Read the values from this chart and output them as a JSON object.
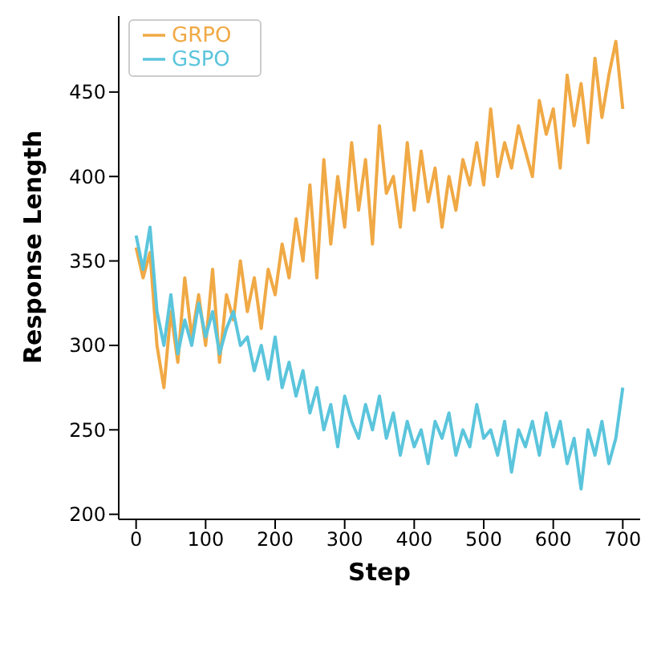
{
  "chart_data": {
    "type": "line",
    "xlabel": "Step",
    "ylabel": "Response Length",
    "x": [
      0,
      10,
      20,
      30,
      40,
      50,
      60,
      70,
      80,
      90,
      100,
      110,
      120,
      130,
      140,
      150,
      160,
      170,
      180,
      190,
      200,
      210,
      220,
      230,
      240,
      250,
      260,
      270,
      280,
      290,
      300,
      310,
      320,
      330,
      340,
      350,
      360,
      370,
      380,
      390,
      400,
      410,
      420,
      430,
      440,
      450,
      460,
      470,
      480,
      490,
      500,
      510,
      520,
      530,
      540,
      550,
      560,
      570,
      580,
      590,
      600,
      610,
      620,
      630,
      640,
      650,
      660,
      670,
      680,
      690,
      700
    ],
    "series": [
      {
        "name": "GRPO",
        "color": "#f0a945",
        "values": [
          358,
          340,
          355,
          300,
          275,
          320,
          290,
          340,
          305,
          330,
          300,
          345,
          290,
          330,
          315,
          350,
          320,
          340,
          310,
          345,
          330,
          360,
          340,
          375,
          350,
          395,
          340,
          410,
          360,
          400,
          370,
          420,
          380,
          410,
          360,
          430,
          390,
          400,
          370,
          420,
          380,
          415,
          385,
          405,
          370,
          400,
          380,
          410,
          395,
          420,
          395,
          440,
          400,
          420,
          405,
          430,
          415,
          400,
          445,
          425,
          440,
          405,
          460,
          430,
          455,
          420,
          470,
          435,
          460,
          480,
          440
        ]
      },
      {
        "name": "GSPO",
        "color": "#5bc5dc",
        "values": [
          365,
          345,
          370,
          320,
          300,
          330,
          295,
          315,
          300,
          325,
          305,
          320,
          295,
          310,
          320,
          300,
          305,
          285,
          300,
          280,
          305,
          275,
          290,
          270,
          285,
          260,
          275,
          250,
          265,
          240,
          270,
          255,
          245,
          265,
          250,
          270,
          245,
          260,
          235,
          255,
          240,
          250,
          230,
          255,
          245,
          260,
          235,
          250,
          240,
          265,
          245,
          250,
          235,
          255,
          225,
          250,
          240,
          255,
          235,
          260,
          240,
          255,
          230,
          245,
          215,
          250,
          235,
          255,
          230,
          245,
          275
        ]
      }
    ],
    "xlim": [
      -25,
      725
    ],
    "xticks": [
      0,
      100,
      200,
      300,
      400,
      500,
      600,
      700
    ],
    "ylim": [
      197,
      495
    ],
    "yticks": [
      200,
      250,
      300,
      350,
      400,
      450
    ],
    "grid": false,
    "legend": "top left",
    "marker": "none",
    "line_style": "solid"
  }
}
